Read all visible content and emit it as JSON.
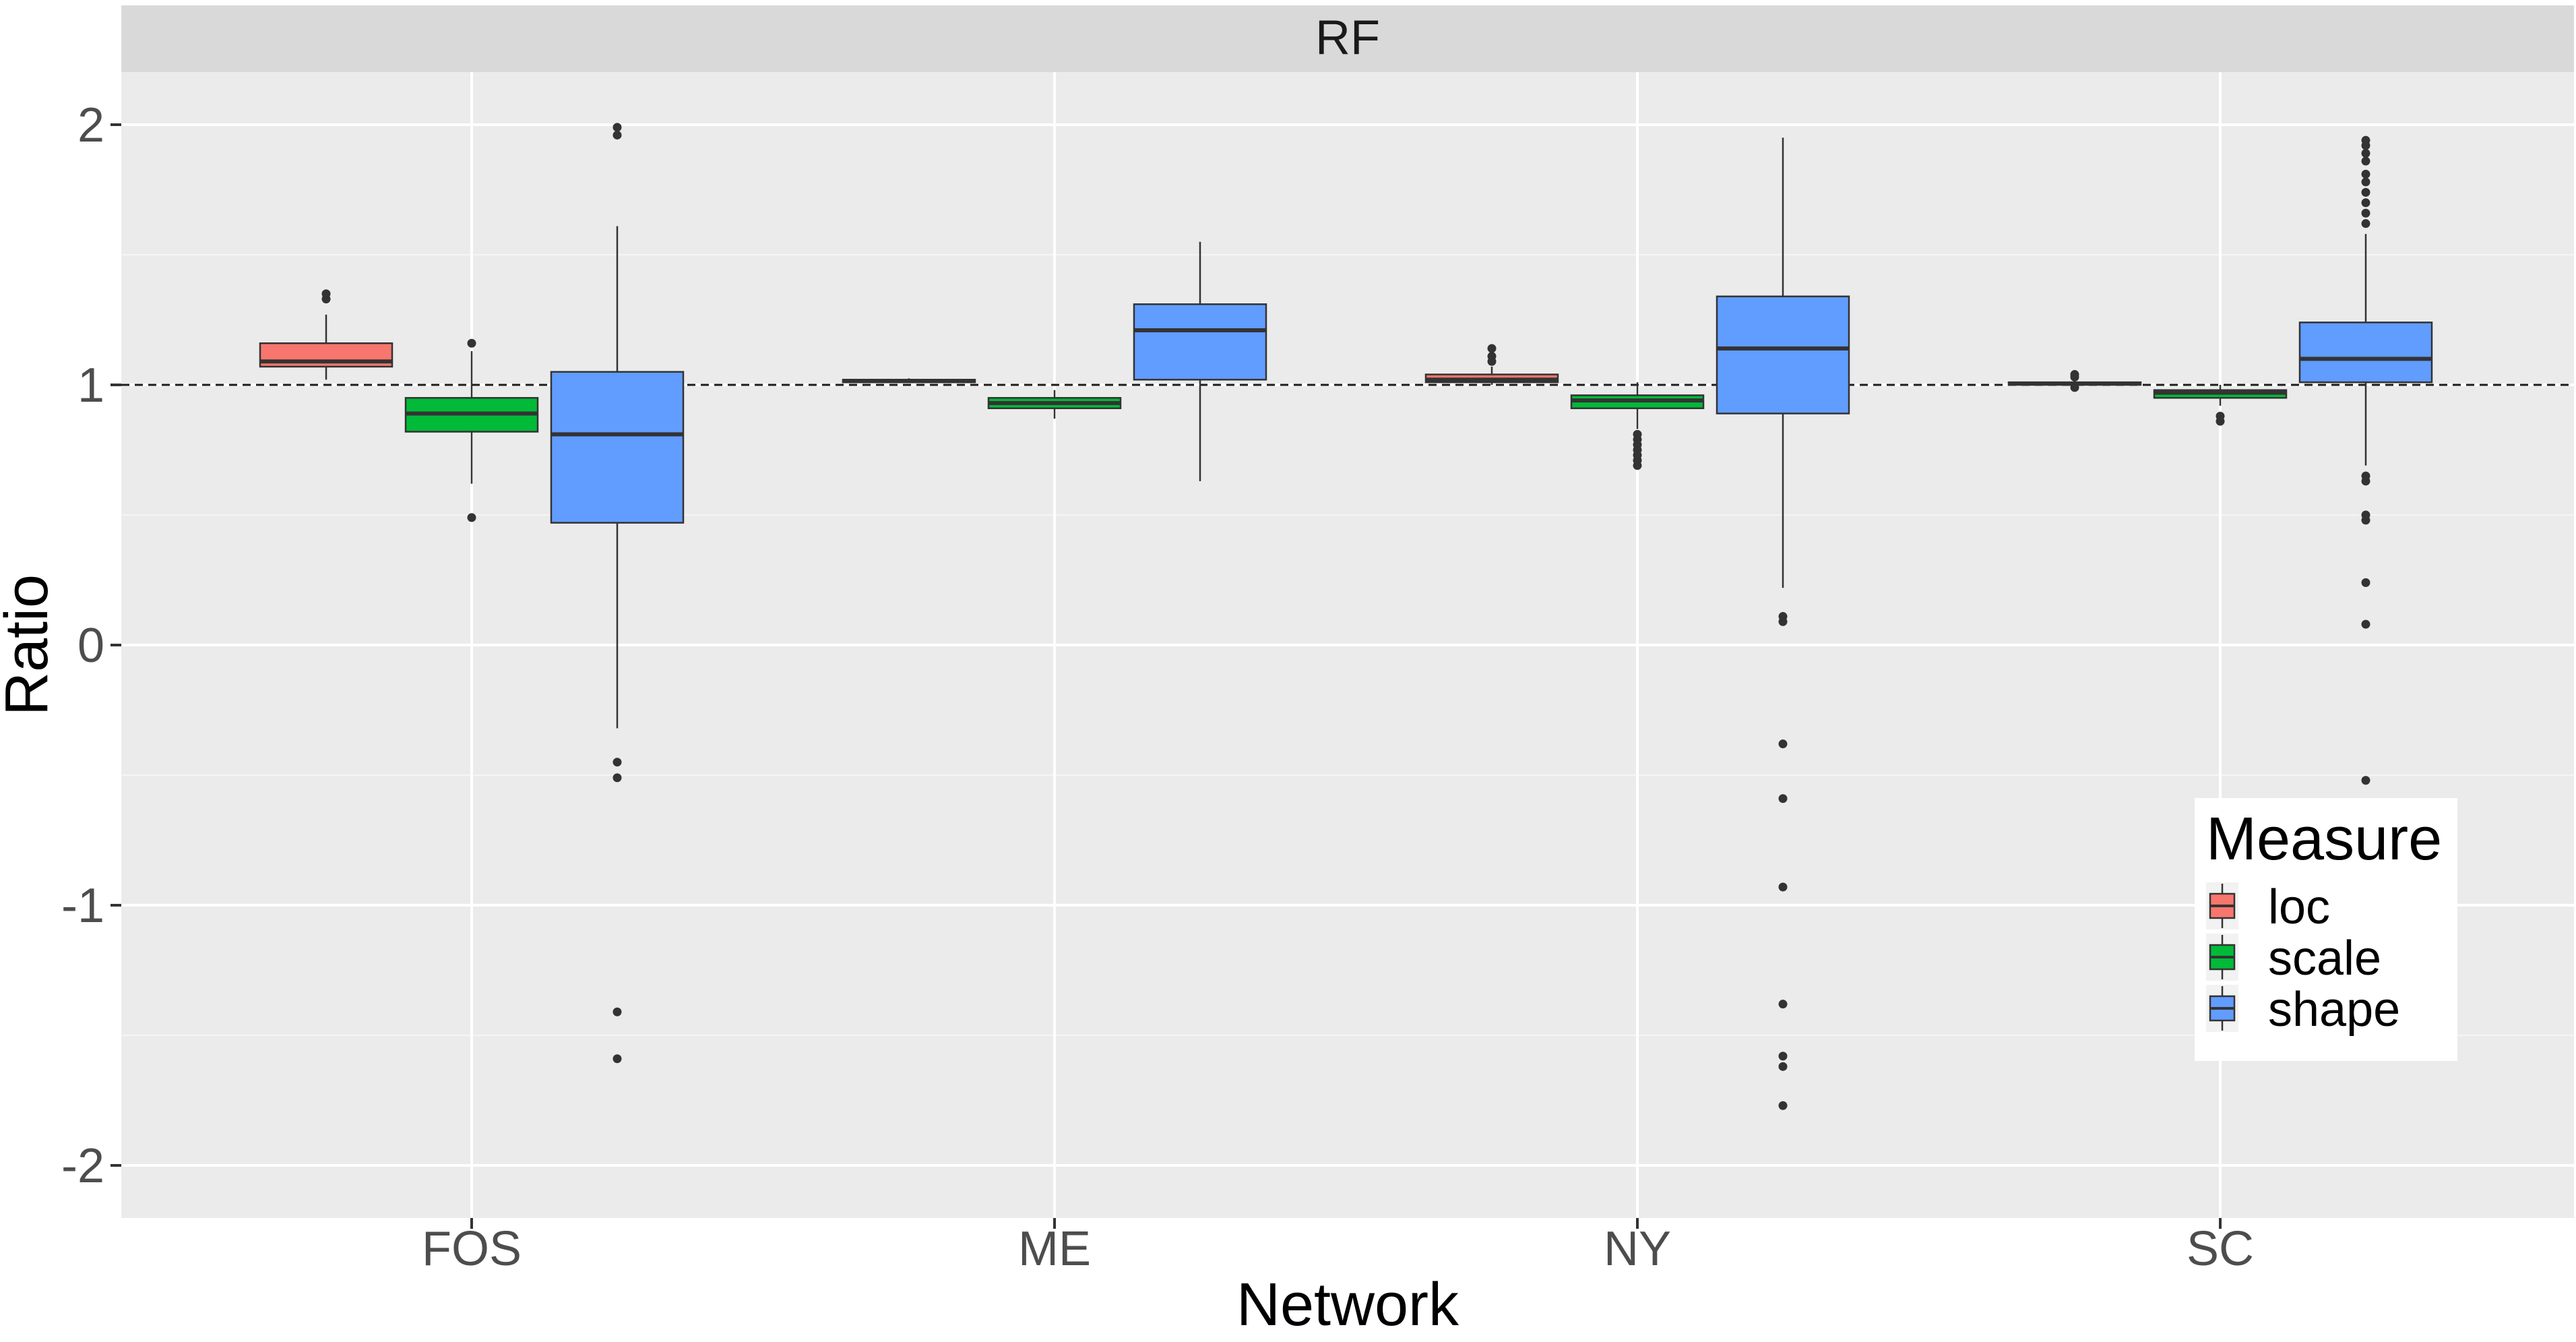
{
  "chart_data": {
    "type": "boxplot",
    "facet_label": "RF",
    "xlabel": "Network",
    "ylabel": "Ratio",
    "ylim": [
      -2.2,
      2.2
    ],
    "y_ticks": [
      -2,
      -1,
      0,
      1,
      2
    ],
    "y_tick_labels": [
      "-2",
      "-1",
      "0",
      "1",
      "2"
    ],
    "reference_line": 1,
    "categories": [
      "FOS",
      "ME",
      "NY",
      "SC"
    ],
    "legend": {
      "title": "Measure",
      "position": "bottom-right inside",
      "entries": [
        "loc",
        "scale",
        "shape"
      ]
    },
    "series": [
      {
        "name": "loc",
        "color": "#F8766D",
        "boxes": [
          {
            "category": "FOS",
            "whisker_low": 1.02,
            "q1": 1.07,
            "median": 1.09,
            "q3": 1.16,
            "whisker_high": 1.27,
            "outliers": [
              1.33,
              1.35
            ]
          },
          {
            "category": "ME",
            "whisker_low": 1.01,
            "q1": 1.01,
            "median": 1.015,
            "q3": 1.02,
            "whisker_high": 1.025,
            "outliers": []
          },
          {
            "category": "NY",
            "whisker_low": 1.0,
            "q1": 1.01,
            "median": 1.02,
            "q3": 1.04,
            "whisker_high": 1.07,
            "outliers": [
              1.09,
              1.11,
              1.14
            ]
          },
          {
            "category": "SC",
            "whisker_low": 0.995,
            "q1": 1.0,
            "median": 1.005,
            "q3": 1.01,
            "whisker_high": 1.02,
            "outliers": [
              0.99,
              1.03,
              1.04
            ]
          }
        ]
      },
      {
        "name": "scale",
        "color": "#00BA38",
        "boxes": [
          {
            "category": "FOS",
            "whisker_low": 0.62,
            "q1": 0.82,
            "median": 0.89,
            "q3": 0.95,
            "whisker_high": 1.13,
            "outliers": [
              0.49,
              1.16
            ]
          },
          {
            "category": "ME",
            "whisker_low": 0.87,
            "q1": 0.91,
            "median": 0.93,
            "q3": 0.95,
            "whisker_high": 0.98,
            "outliers": []
          },
          {
            "category": "NY",
            "whisker_low": 0.83,
            "q1": 0.91,
            "median": 0.94,
            "q3": 0.96,
            "whisker_high": 1.01,
            "outliers": [
              0.69,
              0.71,
              0.73,
              0.75,
              0.77,
              0.79,
              0.81
            ]
          },
          {
            "category": "SC",
            "whisker_low": 0.92,
            "q1": 0.95,
            "median": 0.97,
            "q3": 0.98,
            "whisker_high": 1.0,
            "outliers": [
              0.86,
              0.88
            ]
          }
        ]
      },
      {
        "name": "shape",
        "color": "#619CFF",
        "boxes": [
          {
            "category": "FOS",
            "whisker_low": -0.32,
            "q1": 0.47,
            "median": 0.81,
            "q3": 1.05,
            "whisker_high": 1.61,
            "outliers": [
              -0.45,
              -0.51,
              -1.41,
              -1.59,
              1.96,
              1.99
            ]
          },
          {
            "category": "ME",
            "whisker_low": 0.63,
            "q1": 1.02,
            "median": 1.21,
            "q3": 1.31,
            "whisker_high": 1.55,
            "outliers": []
          },
          {
            "category": "NY",
            "whisker_low": 0.22,
            "q1": 0.89,
            "median": 1.14,
            "q3": 1.34,
            "whisker_high": 1.95,
            "outliers": [
              0.09,
              0.11,
              -0.38,
              -0.59,
              -0.93,
              -1.38,
              -1.58,
              -1.62,
              -1.77
            ]
          },
          {
            "category": "SC",
            "whisker_low": 0.69,
            "q1": 1.01,
            "median": 1.1,
            "q3": 1.24,
            "whisker_high": 1.58,
            "outliers": [
              0.63,
              0.65,
              0.48,
              0.5,
              0.24,
              0.08,
              -0.52,
              1.62,
              1.66,
              1.7,
              1.74,
              1.78,
              1.81,
              1.86,
              1.89,
              1.92,
              1.94
            ]
          }
        ]
      }
    ]
  }
}
